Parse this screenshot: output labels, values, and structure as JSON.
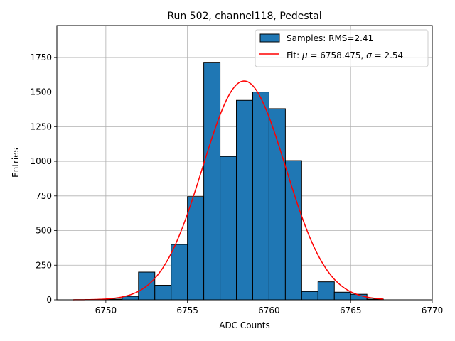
{
  "chart_data": {
    "type": "bar",
    "title": "Run 502, channel118, Pedestal",
    "xlabel": "ADC Counts",
    "ylabel": "Entries",
    "xlim": [
      6747,
      6770
    ],
    "ylim": [
      0,
      1980
    ],
    "grid": true,
    "legend_position": "top-right",
    "x_ticks": [
      6750,
      6755,
      6760,
      6765,
      6770
    ],
    "y_ticks": [
      0,
      250,
      500,
      750,
      1000,
      1250,
      1500,
      1750
    ],
    "histogram": {
      "name": "Samples: RMS=2.41",
      "color": "#1f77b4",
      "edge_color": "#000000",
      "bin_width": 1,
      "bins": [
        {
          "x": 6750,
          "count": 5
        },
        {
          "x": 6751,
          "count": 25
        },
        {
          "x": 6752,
          "count": 200
        },
        {
          "x": 6753,
          "count": 105
        },
        {
          "x": 6754,
          "count": 400
        },
        {
          "x": 6755,
          "count": 745
        },
        {
          "x": 6756,
          "count": 1715
        },
        {
          "x": 6757,
          "count": 1035
        },
        {
          "x": 6758,
          "count": 1440
        },
        {
          "x": 6759,
          "count": 1500
        },
        {
          "x": 6760,
          "count": 1380
        },
        {
          "x": 6761,
          "count": 1005
        },
        {
          "x": 6762,
          "count": 60
        },
        {
          "x": 6763,
          "count": 130
        },
        {
          "x": 6764,
          "count": 55
        },
        {
          "x": 6765,
          "count": 40
        },
        {
          "x": 6766,
          "count": 5
        }
      ]
    },
    "fit": {
      "name": "Fit: μ = 6758.475, σ = 2.54",
      "label_parts": [
        "Fit: ",
        "μ",
        " = 6758.475, ",
        "σ",
        " = 2.54"
      ],
      "color": "#ff0000",
      "mu": 6758.475,
      "sigma": 2.54,
      "amplitude": 1580,
      "x_range": [
        6748,
        6767
      ]
    }
  }
}
